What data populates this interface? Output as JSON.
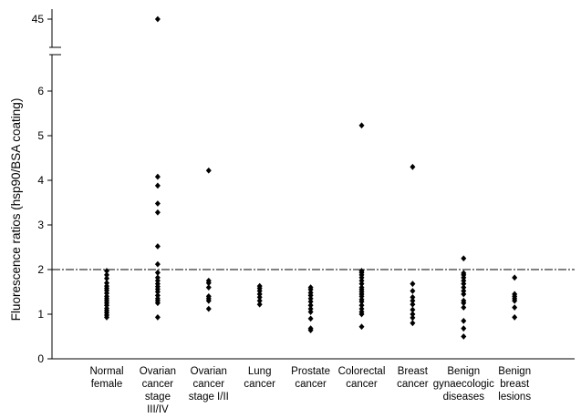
{
  "chart_data": {
    "type": "scatter",
    "ylabel": "Fluorescence ratios (hsp90/BSA coating)",
    "xlabel": "",
    "y_ticks": [
      "0",
      "1",
      "2",
      "3",
      "4",
      "5",
      "6",
      "45"
    ],
    "ylim_lower": [
      0,
      6.7
    ],
    "axis_break": {
      "from": 6.7,
      "to": 44.2
    },
    "ylim_upper": [
      44.2,
      45.5
    ],
    "cutoff_line": 2.0,
    "grid": false,
    "legend": "none",
    "marker_color": "#000000",
    "categories": [
      {
        "label_lines": [
          "Normal",
          "female"
        ],
        "values": [
          0.93,
          0.98,
          1.03,
          1.08,
          1.13,
          1.2,
          1.25,
          1.3,
          1.35,
          1.4,
          1.47,
          1.53,
          1.58,
          1.63,
          1.7,
          1.8,
          1.88,
          1.97
        ]
      },
      {
        "label_lines": [
          "Ovarian",
          "cancer",
          "stage",
          "III/IV"
        ],
        "values": [
          0.93,
          1.25,
          1.3,
          1.35,
          1.42,
          1.5,
          1.56,
          1.62,
          1.68,
          1.75,
          1.82,
          1.93,
          2.12,
          2.52,
          3.28,
          3.48,
          3.88,
          4.08,
          45.0
        ]
      },
      {
        "label_lines": [
          "Ovarian",
          "cancer",
          "stage I/II"
        ],
        "values": [
          1.12,
          1.3,
          1.35,
          1.4,
          1.6,
          1.7,
          1.75,
          4.22
        ]
      },
      {
        "label_lines": [
          "Lung",
          "cancer"
        ],
        "values": [
          1.22,
          1.3,
          1.38,
          1.45,
          1.52,
          1.58,
          1.63
        ]
      },
      {
        "label_lines": [
          "Prostate",
          "cancer"
        ],
        "values": [
          0.64,
          0.68,
          0.9,
          1.05,
          1.12,
          1.2,
          1.28,
          1.35,
          1.42,
          1.48,
          1.55,
          1.6
        ]
      },
      {
        "label_lines": [
          "Colorectal",
          "cancer"
        ],
        "values": [
          0.72,
          1.0,
          1.05,
          1.12,
          1.2,
          1.28,
          1.33,
          1.4,
          1.45,
          1.5,
          1.55,
          1.6,
          1.68,
          1.75,
          1.82,
          1.88,
          1.93,
          1.97,
          5.23
        ]
      },
      {
        "label_lines": [
          "Breast",
          "cancer"
        ],
        "values": [
          0.8,
          0.92,
          1.0,
          1.1,
          1.22,
          1.3,
          1.38,
          1.52,
          1.68,
          4.3
        ]
      },
      {
        "label_lines": [
          "Benign",
          "gynaecologic",
          "diseases"
        ],
        "values": [
          0.5,
          0.68,
          0.85,
          1.15,
          1.25,
          1.3,
          1.45,
          1.52,
          1.6,
          1.68,
          1.75,
          1.82,
          1.88,
          1.92,
          2.25
        ]
      },
      {
        "label_lines": [
          "Benign",
          "breast",
          "lesions"
        ],
        "values": [
          0.93,
          1.15,
          1.3,
          1.35,
          1.4,
          1.45,
          1.82
        ]
      }
    ]
  }
}
